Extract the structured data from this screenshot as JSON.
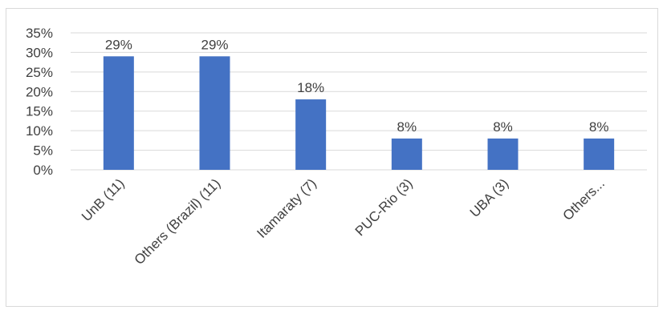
{
  "chart_data": {
    "type": "bar",
    "categories": [
      "UnB (11)",
      "Others (Brazil) (11)",
      "Itamaraty (7)",
      "PUC-Rio (3)",
      "UBA (3)",
      "Others..."
    ],
    "values": [
      29,
      29,
      18,
      8,
      8,
      8
    ],
    "data_labels": [
      "29%",
      "29%",
      "18%",
      "8%",
      "8%",
      "8%"
    ],
    "y_ticks": [
      "0%",
      "5%",
      "10%",
      "15%",
      "20%",
      "25%",
      "30%",
      "35%"
    ],
    "ylim": [
      0,
      35
    ],
    "grid": true,
    "bar_color": "#4472c4",
    "grid_color": "#d9d9d9",
    "title": "",
    "xlabel": "",
    "ylabel": ""
  }
}
